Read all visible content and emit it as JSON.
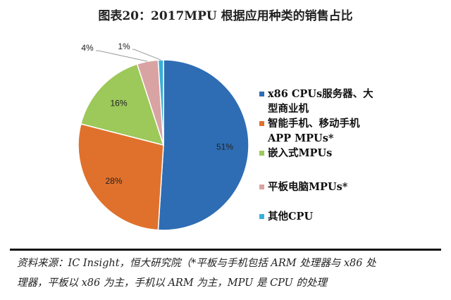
{
  "chart_data": {
    "type": "pie",
    "title": "图表20：2017MPU 根据应用种类的销售占比",
    "categories": [
      "x86 CPUs服务器、大型商业机",
      "智能手机、移动手机APP MPUs*",
      "嵌入式MPUs",
      "平板电脑MPUs*",
      "其他CPU"
    ],
    "legend_lines": [
      [
        "x86 CPUs服务器、大",
        "型商业机"
      ],
      [
        "智能手机、移动手机",
        "APP MPUs*"
      ],
      [
        "嵌入式MPUs"
      ],
      [
        "平板电脑MPUs*"
      ],
      [
        "其他CPU"
      ]
    ],
    "values": [
      51,
      28,
      16,
      4,
      1
    ],
    "labels": [
      "51%",
      "28%",
      "16%",
      "4%",
      "1%"
    ],
    "colors": [
      "#2E6DB4",
      "#E0712C",
      "#9DC85A",
      "#D9A3A3",
      "#3AAFD8"
    ],
    "legend_position": "right"
  },
  "footnote": {
    "line1": "资料来源：IC Insight，恒大研究院（*平板与手机包括 ARM 处理器与 x86 处",
    "line2": "理器，平板以 x86 为主，手机以 ARM 为主，MPU 是 CPU 的处理"
  }
}
